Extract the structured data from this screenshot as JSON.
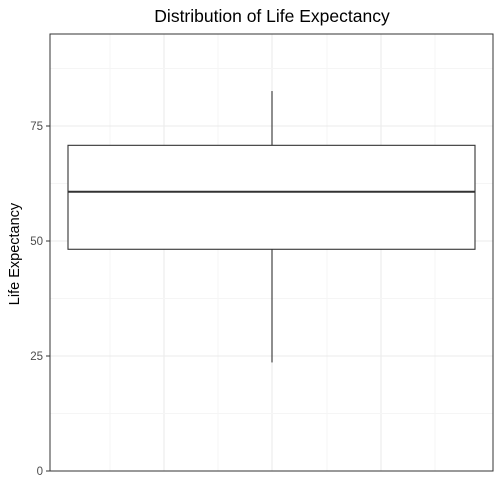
{
  "chart_data": {
    "type": "boxplot",
    "title": "Distribution of Life Expectancy",
    "xlabel": "",
    "ylabel": "Life Expectancy",
    "ylim": [
      0,
      95
    ],
    "yticks": [
      0,
      25,
      50,
      75
    ],
    "ytick_labels": [
      "0",
      "25",
      "50",
      "75"
    ],
    "box": {
      "whisker_low": 23.6,
      "q1": 48.2,
      "median": 60.7,
      "q3": 70.8,
      "whisker_high": 82.6
    },
    "grid": true,
    "legend": "none",
    "colors": {
      "box_fill": "#ffffff",
      "box_line": "#333333",
      "panel_border": "#333333",
      "grid_major": "#ebebeb",
      "grid_minor": "#f5f5f5"
    }
  }
}
